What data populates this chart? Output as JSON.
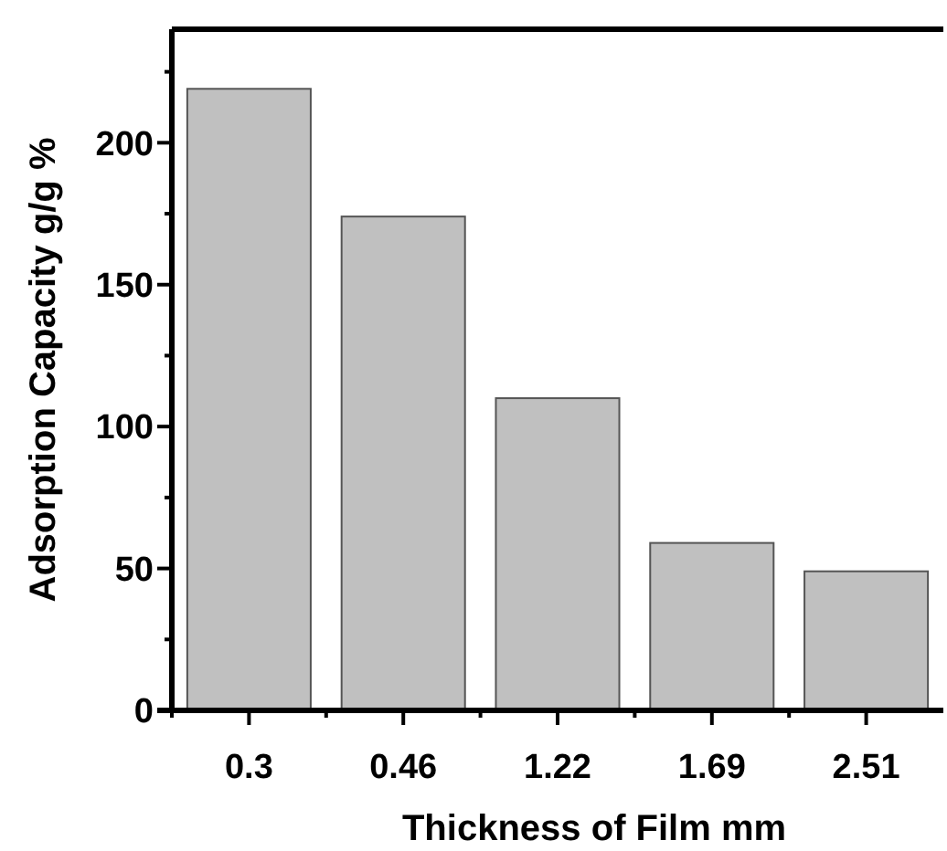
{
  "chart_data": {
    "type": "bar",
    "xlabel": "Thickness of Film mm",
    "ylabel": "Adsorption Capacity g/g %",
    "categories": [
      "0.3",
      "0.46",
      "1.22",
      "1.69",
      "2.51"
    ],
    "values": [
      219,
      174,
      110,
      59,
      49
    ],
    "color": "#c0c0c0",
    "ylim": [
      0,
      240
    ],
    "yticks": [
      0,
      {
        "value": 25,
        "label": null
      },
      50,
      {
        "value": 75,
        "label": null
      },
      100,
      {
        "value": 125,
        "label": null
      },
      150,
      {
        "value": 175,
        "label": null
      },
      200,
      {
        "value": 225,
        "label": null
      }
    ],
    "grid": false
  }
}
